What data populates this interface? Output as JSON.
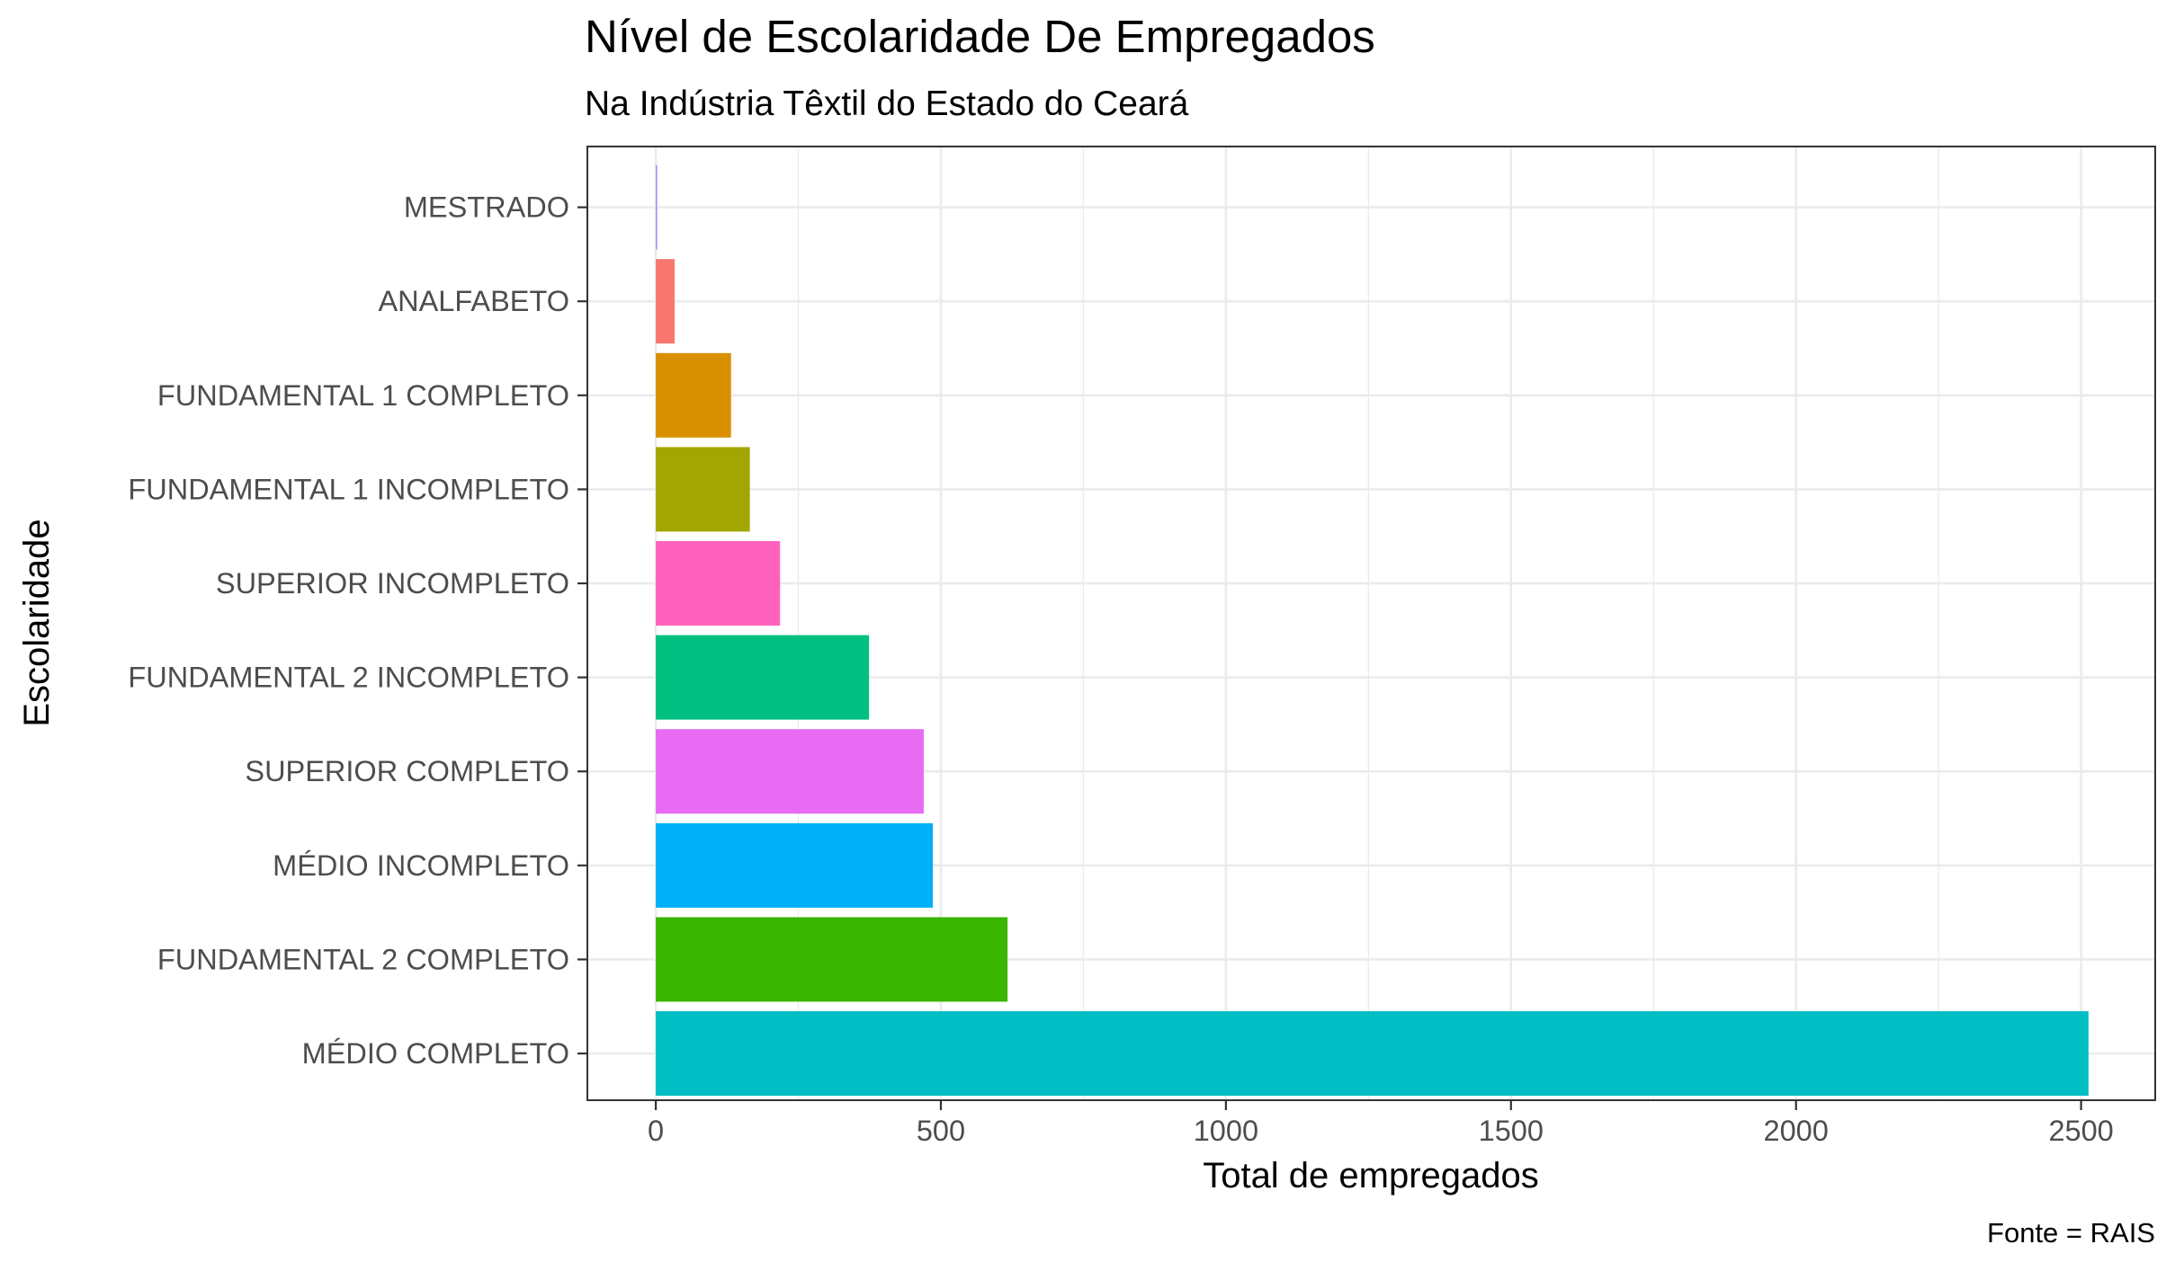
{
  "chart_data": {
    "type": "bar",
    "orientation": "horizontal",
    "title": "Nível de Escolaridade De Empregados",
    "subtitle": "Na Indústria Têxtil do Estado do Ceará",
    "xlabel": "Total de empregados",
    "ylabel": "Escolaridade",
    "caption": "Fonte = RAIS",
    "categories": [
      "MÉDIO COMPLETO",
      "FUNDAMENTAL 2 COMPLETO",
      "MÉDIO INCOMPLETO",
      "SUPERIOR COMPLETO",
      "FUNDAMENTAL 2 INCOMPLETO",
      "SUPERIOR INCOMPLETO",
      "FUNDAMENTAL 1 INCOMPLETO",
      "FUNDAMENTAL 1 COMPLETO",
      "ANALFABETO",
      "MESTRADO"
    ],
    "values": [
      2513,
      617,
      486,
      470,
      374,
      218,
      165,
      132,
      33,
      1
    ],
    "colors": [
      "#00BFC4",
      "#39B600",
      "#00B0F6",
      "#E76BF3",
      "#00C081",
      "#FF62BC",
      "#A3A500",
      "#D89000",
      "#F8766D",
      "#9590FF"
    ],
    "x_ticks": [
      "0",
      "500",
      "1000",
      "1500",
      "2000",
      "2500"
    ],
    "xlim": [
      -120,
      2630
    ],
    "grid": true,
    "legend": "none"
  }
}
